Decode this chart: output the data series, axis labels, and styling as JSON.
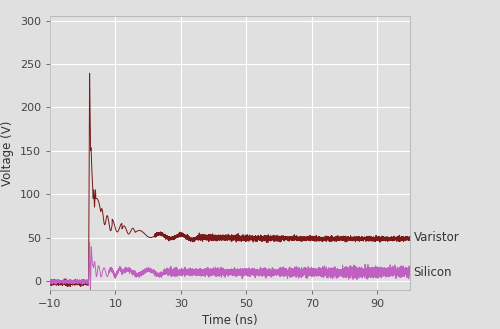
{
  "title": "",
  "xlabel": "Time (ns)",
  "ylabel": "Voltage (V)",
  "xlim": [
    -10,
    100
  ],
  "ylim": [
    -10,
    305
  ],
  "xticks": [
    -10,
    10,
    30,
    50,
    70,
    90
  ],
  "yticks": [
    0,
    50,
    100,
    150,
    200,
    250,
    300
  ],
  "varistor_color": "#7B1818",
  "silicon_color": "#C060C0",
  "background_color": "#E0E0E0",
  "grid_color": "#FFFFFF",
  "legend_varistor": "Varistor",
  "legend_silicon": "Silicon",
  "figsize": [
    5.0,
    3.29
  ],
  "dpi": 100
}
